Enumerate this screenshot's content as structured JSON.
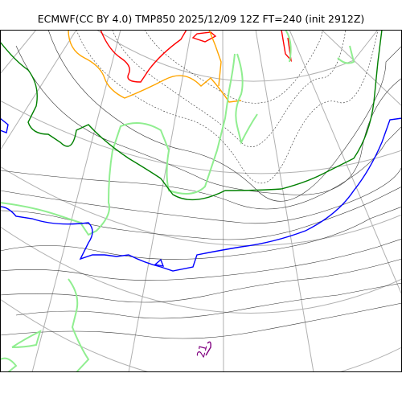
{
  "title": "ECMWF(CC BY 4.0) TMP850 2025/12/09 12Z FT=240 (init 2912Z)",
  "contour_label": "21",
  "colors": {
    "graticule": "#b0b0b0",
    "isotherm_thin": "#333333",
    "isotherm_red": "#ff0000",
    "isotherm_orange": "#ffa500",
    "isotherm_lightgreen": "#90ee90",
    "isotherm_green": "#008000",
    "isotherm_blue": "#0000ff",
    "isotherm_purple": "#800080"
  }
}
